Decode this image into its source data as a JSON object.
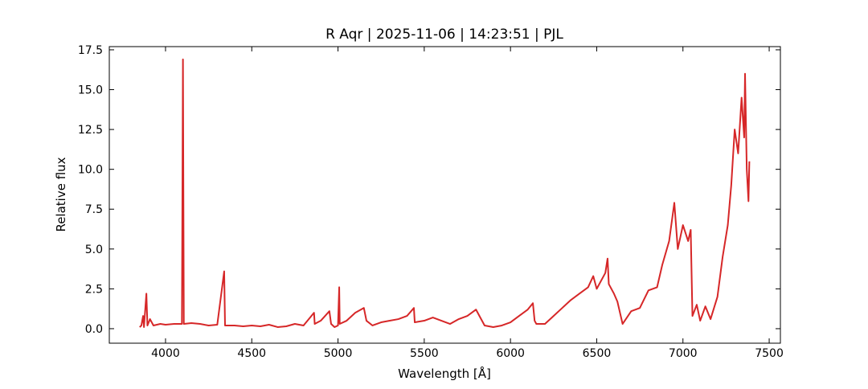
{
  "chart_data": {
    "type": "line",
    "title": "R Aqr | 2025-11-06 | 14:23:51 | PJL",
    "xlabel": "Wavelength [Å]",
    "ylabel": "Relative flux",
    "xlim": [
      3674,
      7565
    ],
    "ylim": [
      -0.91,
      17.7
    ],
    "xticks": [
      4000,
      4500,
      5000,
      5500,
      6000,
      6500,
      7000,
      7500
    ],
    "yticks": [
      {
        "value": 0,
        "label": "0.0"
      },
      {
        "value": 2.5,
        "label": "2.5"
      },
      {
        "value": 5,
        "label": "5.0"
      },
      {
        "value": 7.5,
        "label": "7.5"
      },
      {
        "value": 10,
        "label": "10.0"
      },
      {
        "value": 12.5,
        "label": "12.5"
      },
      {
        "value": 15,
        "label": "15.0"
      },
      {
        "value": 17.5,
        "label": "17.5"
      }
    ],
    "x": [
      3850,
      3860,
      3870,
      3875,
      3889,
      3895,
      3910,
      3930,
      3970,
      4000,
      4050,
      4095,
      4101,
      4106,
      4150,
      4200,
      4250,
      4300,
      4340,
      4345,
      4400,
      4450,
      4500,
      4550,
      4600,
      4650,
      4700,
      4750,
      4800,
      4861,
      4865,
      4900,
      4950,
      4960,
      4980,
      5000,
      5007,
      5010,
      5050,
      5100,
      5150,
      5165,
      5200,
      5250,
      5300,
      5350,
      5400,
      5440,
      5445,
      5500,
      5550,
      5600,
      5650,
      5700,
      5750,
      5800,
      5820,
      5850,
      5900,
      5950,
      6000,
      6050,
      6100,
      6130,
      6140,
      6150,
      6200,
      6250,
      6300,
      6350,
      6400,
      6450,
      6480,
      6500,
      6550,
      6563,
      6570,
      6600,
      6620,
      6650,
      6700,
      6750,
      6800,
      6850,
      6880,
      6920,
      6950,
      6970,
      7000,
      7030,
      7045,
      7055,
      7080,
      7100,
      7130,
      7160,
      7200,
      7230,
      7260,
      7280,
      7300,
      7320,
      7340,
      7355,
      7360,
      7370,
      7380,
      7385
    ],
    "series": [
      {
        "name": "R Aqr",
        "color": "#d62728",
        "values": [
          0.1,
          0.2,
          0.8,
          0.1,
          2.2,
          0.2,
          0.6,
          0.2,
          0.3,
          0.25,
          0.3,
          0.3,
          16.9,
          0.3,
          0.35,
          0.3,
          0.2,
          0.25,
          3.6,
          0.2,
          0.2,
          0.15,
          0.2,
          0.15,
          0.25,
          0.1,
          0.15,
          0.3,
          0.2,
          1.0,
          0.3,
          0.5,
          1.1,
          0.3,
          0.1,
          0.2,
          2.6,
          0.3,
          0.5,
          1.0,
          1.3,
          0.5,
          0.2,
          0.4,
          0.5,
          0.6,
          0.8,
          1.3,
          0.4,
          0.5,
          0.7,
          0.5,
          0.3,
          0.6,
          0.8,
          1.2,
          0.8,
          0.2,
          0.1,
          0.2,
          0.4,
          0.8,
          1.2,
          1.6,
          0.5,
          0.3,
          0.3,
          0.8,
          1.3,
          1.8,
          2.2,
          2.6,
          3.3,
          2.5,
          3.5,
          4.4,
          2.8,
          2.2,
          1.7,
          0.3,
          1.1,
          1.3,
          2.4,
          2.6,
          4.0,
          5.5,
          7.9,
          5.0,
          6.5,
          5.5,
          6.2,
          0.8,
          1.5,
          0.5,
          1.4,
          0.6,
          2.0,
          4.5,
          6.5,
          9.0,
          12.5,
          11.0,
          14.5,
          12.0,
          16.0,
          10.0,
          8.0,
          10.5
        ]
      }
    ]
  }
}
